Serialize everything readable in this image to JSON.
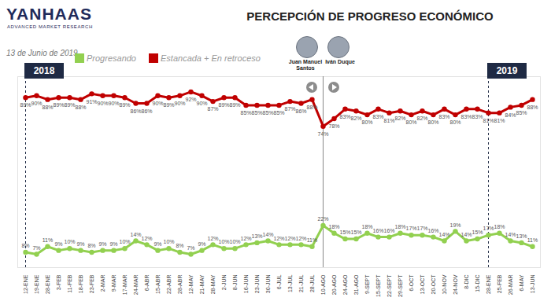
{
  "chart_data": {
    "type": "line",
    "title": "PERCEPCIÓN DE PROGRESO ECONÓMICO",
    "subtitle": "13 de Junio de 2019",
    "brand": "YANHAAS",
    "brand_tagline": "ADVANCED MARKET RESEARCH",
    "categories": [
      "12-ENE",
      "19-ENE",
      "28-ENE",
      "3-FEB",
      "11-FEB",
      "18-FEB",
      "23-FEB",
      "2-MAR",
      "9-MAR",
      "17-MAR",
      "24-MAR",
      "6-ABR",
      "15-ABR",
      "22-ABR",
      "28-ABR",
      "12-MAY",
      "21-MAY",
      "28-MAY",
      "2-JUN",
      "8-JUN",
      "16-JUN",
      "23-JUN",
      "30-JUN",
      "6-JUL",
      "13-JUL",
      "21-JUL",
      "28-JUL",
      "10-AGO",
      "20-AGO",
      "24-AGO",
      "31-AGO",
      "9-SEPT",
      "15-SEPT",
      "22-SEPT",
      "29-SEPT",
      "6-OCT",
      "13-OCT",
      "20-OCT",
      "10-NOV",
      "24-NOV",
      "8-DIC",
      "15-DIC",
      "28-ENE",
      "25-FEB",
      "26-MAR",
      "6-MAY",
      "13-JUN"
    ],
    "series": [
      {
        "name": "Progresando",
        "color": "#92d050",
        "marker": "circle",
        "values": [
          8,
          7,
          11,
          9,
          10,
          9,
          8,
          9,
          9,
          10,
          14,
          12,
          9,
          10,
          8,
          7,
          9,
          12,
          10,
          10,
          12,
          13,
          14,
          12,
          12,
          12,
          11,
          22,
          18,
          15,
          15,
          18,
          16,
          16,
          18,
          17,
          17,
          16,
          14,
          19,
          14,
          15,
          17,
          18,
          14,
          13,
          11
        ],
        "value_labels": [
          "8%",
          "7%",
          "11%",
          "9%",
          "10%",
          "9%",
          "8%",
          "9%",
          "9%",
          "10%",
          "14%",
          "12%",
          "9%",
          "10%",
          "8%",
          "7%",
          "9%",
          "12%",
          "10%",
          "10%",
          "12%",
          "13%",
          "14%",
          "12%",
          "12%",
          "12%",
          "11%",
          "22%",
          "18%",
          "15%",
          "15%",
          "18%",
          "16%",
          "16%",
          "18%",
          "17%",
          "17%",
          "16%",
          "14%",
          "19%",
          "14%",
          "15%",
          "17%",
          "18%",
          "14%",
          "13%",
          "11%"
        ]
      },
      {
        "name": "Estancada + En retroceso",
        "color": "#c00000",
        "marker": "circle",
        "values": [
          89,
          90,
          88,
          89,
          89,
          88,
          91,
          90,
          90,
          89,
          86,
          86,
          90,
          89,
          90,
          92,
          90,
          87,
          89,
          89,
          85,
          85,
          85,
          85,
          87,
          86,
          88,
          74,
          78,
          83,
          82,
          80,
          83,
          81,
          82,
          80,
          82,
          80,
          83,
          80,
          83,
          83,
          81,
          81,
          84,
          85,
          88
        ],
        "value_labels": [
          "89%",
          "90%",
          "88%",
          "89%",
          "89%",
          "88%",
          "91%",
          "90%",
          "90%",
          "89%",
          "86%",
          "86%",
          "90%",
          "89%",
          "90%",
          "92%",
          "90%",
          "87%",
          "89%",
          "89%",
          "85%",
          "85%",
          "85%",
          "85%",
          "87%",
          "86%",
          "88%",
          "74%",
          "78%",
          "83%",
          "82%",
          "80%",
          "83%",
          "81%",
          "82%",
          "80%",
          "82%",
          "80%",
          "83%",
          "80%",
          "83%",
          "83%",
          "81%",
          "81%",
          "84%",
          "85%",
          "88%"
        ]
      }
    ],
    "ylim": [
      0,
      100
    ],
    "tick_labels": "x",
    "data_labels": true,
    "legend": "top-left",
    "year_markers": [
      {
        "label": "2018",
        "index": 0
      },
      {
        "label": "2019",
        "index": 42
      }
    ],
    "government_change": {
      "index": 27,
      "before": "Juan Manuel Santos",
      "after": "Iván Duque"
    }
  }
}
